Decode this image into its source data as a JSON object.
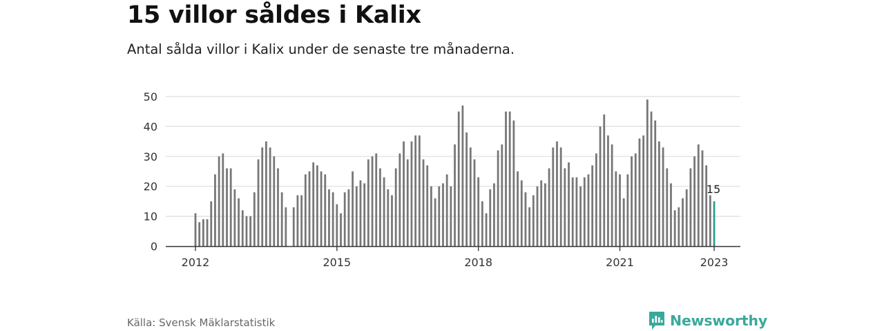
{
  "header": {
    "title": "15 villor såldes i Kalix",
    "subtitle": "Antal sålda villor i Kalix under de senaste tre månaderna."
  },
  "footer": {
    "source": "Källa: Svensk Mäklarstatistik",
    "brand": "Newsworthy"
  },
  "colors": {
    "bar": "#777777",
    "highlight": "#2a9d91",
    "grid": "#dddddd",
    "axis": "#333333",
    "brand": "#3aa89b"
  },
  "chart_data": {
    "type": "bar",
    "title": "15 villor såldes i Kalix",
    "xlabel": "",
    "ylabel": "",
    "ylim": [
      0,
      50
    ],
    "yticks": [
      0,
      10,
      20,
      30,
      40,
      50
    ],
    "xticks": [
      "2012",
      "2015",
      "2018",
      "2021",
      "2023"
    ],
    "grid": true,
    "categories": [
      "2012-01",
      "2012-02",
      "2012-03",
      "2012-04",
      "2012-05",
      "2012-06",
      "2012-07",
      "2012-08",
      "2012-09",
      "2012-10",
      "2012-11",
      "2012-12",
      "2013-01",
      "2013-02",
      "2013-03",
      "2013-04",
      "2013-05",
      "2013-06",
      "2013-07",
      "2013-08",
      "2013-09",
      "2013-10",
      "2013-11",
      "2013-12",
      "2014-01",
      "2014-02",
      "2014-03",
      "2014-04",
      "2014-05",
      "2014-06",
      "2014-07",
      "2014-08",
      "2014-09",
      "2014-10",
      "2014-11",
      "2014-12",
      "2015-01",
      "2015-02",
      "2015-03",
      "2015-04",
      "2015-05",
      "2015-06",
      "2015-07",
      "2015-08",
      "2015-09",
      "2015-10",
      "2015-11",
      "2015-12",
      "2016-01",
      "2016-02",
      "2016-03",
      "2016-04",
      "2016-05",
      "2016-06",
      "2016-07",
      "2016-08",
      "2016-09",
      "2016-10",
      "2016-11",
      "2016-12",
      "2017-01",
      "2017-02",
      "2017-03",
      "2017-04",
      "2017-05",
      "2017-06",
      "2017-07",
      "2017-08",
      "2017-09",
      "2017-10",
      "2017-11",
      "2017-12",
      "2018-01",
      "2018-02",
      "2018-03",
      "2018-04",
      "2018-05",
      "2018-06",
      "2018-07",
      "2018-08",
      "2018-09",
      "2018-10",
      "2018-11",
      "2018-12",
      "2019-01",
      "2019-02",
      "2019-03",
      "2019-04",
      "2019-05",
      "2019-06",
      "2019-07",
      "2019-08",
      "2019-09",
      "2019-10",
      "2019-11",
      "2019-12",
      "2020-01",
      "2020-02",
      "2020-03",
      "2020-04",
      "2020-05",
      "2020-06",
      "2020-07",
      "2020-08",
      "2020-09",
      "2020-10",
      "2020-11",
      "2020-12",
      "2021-01",
      "2021-02",
      "2021-03",
      "2021-04",
      "2021-05",
      "2021-06",
      "2021-07",
      "2021-08",
      "2021-09",
      "2021-10",
      "2021-11",
      "2021-12",
      "2022-01",
      "2022-02",
      "2022-03",
      "2022-04",
      "2022-05",
      "2022-06",
      "2022-07",
      "2022-08",
      "2022-09",
      "2022-10",
      "2022-11",
      "2022-12",
      "2023-01"
    ],
    "values": [
      11,
      8,
      9,
      9,
      15,
      24,
      30,
      31,
      26,
      26,
      19,
      16,
      12,
      10,
      10,
      18,
      29,
      33,
      35,
      33,
      30,
      26,
      18,
      13,
      null,
      13,
      17,
      17,
      24,
      25,
      28,
      27,
      25,
      24,
      19,
      18,
      14,
      11,
      18,
      19,
      25,
      20,
      22,
      21,
      29,
      30,
      31,
      26,
      23,
      19,
      17,
      26,
      31,
      35,
      29,
      35,
      37,
      37,
      29,
      27,
      20,
      16,
      20,
      21,
      24,
      20,
      34,
      45,
      47,
      38,
      33,
      29,
      23,
      15,
      11,
      19,
      21,
      32,
      34,
      45,
      45,
      42,
      25,
      22,
      18,
      13,
      17,
      20,
      22,
      21,
      26,
      33,
      35,
      33,
      26,
      28,
      23,
      23,
      20,
      23,
      24,
      27,
      31,
      40,
      44,
      37,
      34,
      25,
      24,
      16,
      24,
      30,
      31,
      36,
      37,
      49,
      45,
      42,
      35,
      33,
      26,
      21,
      12,
      13,
      16,
      19,
      26,
      30,
      34,
      32,
      27,
      17,
      15
    ],
    "highlight_index": 132,
    "highlight_label": "15"
  }
}
